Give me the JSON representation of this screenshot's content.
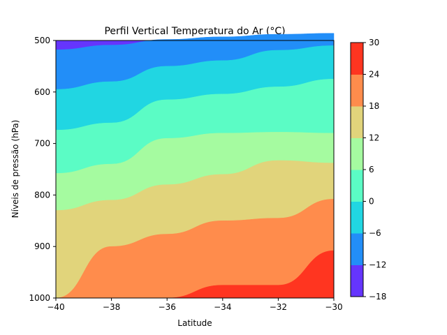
{
  "chart_data": {
    "type": "contourf",
    "title": "Perfil Vertical Temperatura do Ar (°C)",
    "xlabel": "Latitude",
    "ylabel": "Níveis de pressão (hPa)",
    "xlim": [
      -40,
      -30
    ],
    "ylim": [
      1000,
      500
    ],
    "y_inverted": true,
    "xticks": [
      -40,
      -38,
      -36,
      -34,
      -32,
      -30
    ],
    "xtick_labels": [
      "−40",
      "−38",
      "−36",
      "−34",
      "−32",
      "−30"
    ],
    "yticks": [
      500,
      600,
      700,
      800,
      900,
      1000
    ],
    "ytick_labels": [
      "500",
      "600",
      "700",
      "800",
      "900",
      "1000"
    ],
    "levels": [
      -18,
      -12,
      -6,
      0,
      6,
      12,
      18,
      24,
      30
    ],
    "colorbar_tick_labels": [
      "−18",
      "−12",
      "−6",
      "0",
      "6",
      "12",
      "18",
      "24",
      "30"
    ],
    "level_colors": [
      "#6535fd",
      "#228ef8",
      "#21d6e2",
      "#5bfcc5",
      "#a5fba0",
      "#e1d47b",
      "#ff8c4c",
      "#ff3520"
    ],
    "grid": false,
    "colorbar": "right",
    "x": [
      -40,
      -38,
      -36,
      -34,
      -32,
      -30
    ],
    "contour_boundaries": [
      {
        "lower_level": -12,
        "x": [
          -40,
          -38,
          -36,
          -34,
          -32,
          -30
        ],
        "pressure": [
          518,
          509,
          498,
          493,
          488,
          486
        ]
      },
      {
        "lower_level": -6,
        "x": [
          -40,
          -38,
          -36,
          -34,
          -32,
          -30
        ],
        "pressure": [
          595,
          580,
          550,
          539,
          519,
          510
        ]
      },
      {
        "lower_level": 0,
        "x": [
          -40,
          -38,
          -36,
          -34,
          -32,
          -30
        ],
        "pressure": [
          674,
          660,
          615,
          604,
          590,
          575
        ]
      },
      {
        "lower_level": 6,
        "x": [
          -40,
          -38,
          -36,
          -34,
          -32,
          -30
        ],
        "pressure": [
          758,
          740,
          690,
          680,
          678,
          680
        ]
      },
      {
        "lower_level": 12,
        "x": [
          -40,
          -38,
          -36,
          -34,
          -32,
          -30
        ],
        "pressure": [
          830,
          810,
          780,
          760,
          733,
          738
        ]
      },
      {
        "lower_level": 18,
        "x": [
          -40,
          -38,
          -36,
          -34,
          -32,
          -30
        ],
        "pressure": [
          1000,
          900,
          876,
          850,
          845,
          808
        ]
      },
      {
        "lower_level": 24,
        "x": [
          -40,
          -38,
          -36,
          -34,
          -32,
          -30
        ],
        "pressure": [
          1000,
          1000,
          1000,
          975,
          975,
          908
        ]
      }
    ]
  }
}
